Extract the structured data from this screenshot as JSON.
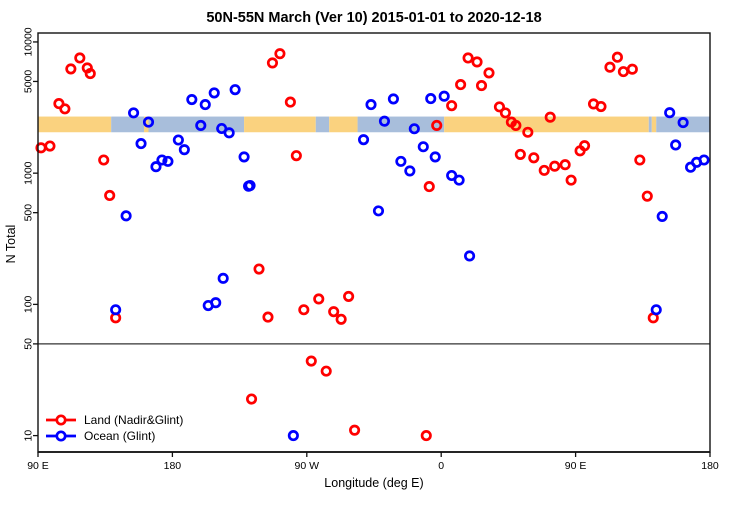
{
  "chart_data": {
    "type": "scatter",
    "title": "50N-55N March (Ver 10)   2015-01-01 to 2020-12-18",
    "xlabel": "Longitude (deg E)",
    "ylabel": "N Total",
    "x_axis": {
      "range": [
        90,
        540
      ],
      "ticks": [
        {
          "value": 90,
          "label": "90 E"
        },
        {
          "value": 180,
          "label": "180"
        },
        {
          "value": 270,
          "label": "90 W"
        },
        {
          "value": 360,
          "label": "0"
        },
        {
          "value": 450,
          "label": "90 E"
        },
        {
          "value": 540,
          "label": "180"
        }
      ]
    },
    "y_axis": {
      "scale": "log",
      "range": [
        7.5,
        11700
      ],
      "ticks": [
        {
          "value": 10000,
          "label": "10000"
        },
        {
          "value": 5000,
          "label": "5000"
        },
        {
          "value": 1000,
          "label": "1000"
        },
        {
          "value": 500,
          "label": "500"
        },
        {
          "value": 100,
          "label": "100"
        },
        {
          "value": 50,
          "label": "50"
        },
        {
          "value": 10,
          "label": "10"
        }
      ]
    },
    "threshold_line": {
      "value": 50,
      "color": "#333333"
    },
    "map_strip": {
      "n_top": 2700,
      "n_bottom": 2050,
      "land_color": "#FAD27F",
      "ocean_color": "#A8BEDB",
      "segments": [
        {
          "from": 90,
          "to": 139,
          "surface": "land"
        },
        {
          "from": 139,
          "to": 161,
          "surface": "ocean"
        },
        {
          "from": 161,
          "to": 164,
          "surface": "land"
        },
        {
          "from": 164,
          "to": 228,
          "surface": "ocean"
        },
        {
          "from": 228,
          "to": 276,
          "surface": "land"
        },
        {
          "from": 276,
          "to": 285,
          "surface": "ocean"
        },
        {
          "from": 285,
          "to": 304,
          "surface": "land"
        },
        {
          "from": 304,
          "to": 362,
          "surface": "ocean"
        },
        {
          "from": 362,
          "to": 499,
          "surface": "land"
        },
        {
          "from": 499,
          "to": 501,
          "surface": "ocean"
        },
        {
          "from": 501,
          "to": 504,
          "surface": "land"
        },
        {
          "from": 504,
          "to": 540,
          "surface": "ocean"
        }
      ]
    },
    "series": [
      {
        "name": "Land (Nadir&Glint)",
        "color": "#FF0000",
        "points": [
          [
            118,
            7550
          ],
          [
            112,
            6230
          ],
          [
            123,
            6340
          ],
          [
            125,
            5740
          ],
          [
            104,
            3390
          ],
          [
            108,
            3090
          ],
          [
            92,
            1560
          ],
          [
            98,
            1610
          ],
          [
            134,
            1260
          ],
          [
            138,
            676
          ],
          [
            142,
            79
          ],
          [
            238,
            186
          ],
          [
            244,
            80
          ],
          [
            233,
            19
          ],
          [
            252,
            8140
          ],
          [
            247,
            6920
          ],
          [
            259,
            3480
          ],
          [
            263,
            1360
          ],
          [
            268,
            91
          ],
          [
            278,
            110
          ],
          [
            273,
            37
          ],
          [
            283,
            31
          ],
          [
            298,
            115
          ],
          [
            288,
            88
          ],
          [
            293,
            77
          ],
          [
            302,
            11
          ],
          [
            350,
            10
          ],
          [
            352,
            790
          ],
          [
            357,
            2310
          ],
          [
            367,
            3270
          ],
          [
            373,
            4730
          ],
          [
            378,
            7550
          ],
          [
            384,
            7040
          ],
          [
            387,
            4650
          ],
          [
            392,
            5810
          ],
          [
            399,
            3200
          ],
          [
            403,
            2880
          ],
          [
            407,
            2450
          ],
          [
            410,
            2310
          ],
          [
            418,
            2050
          ],
          [
            433,
            2670
          ],
          [
            413,
            1390
          ],
          [
            422,
            1310
          ],
          [
            429,
            1050
          ],
          [
            436,
            1130
          ],
          [
            443,
            1160
          ],
          [
            447,
            885
          ],
          [
            456,
            1620
          ],
          [
            453,
            1480
          ],
          [
            462,
            3370
          ],
          [
            467,
            3220
          ],
          [
            473,
            6420
          ],
          [
            478,
            7650
          ],
          [
            482,
            5940
          ],
          [
            488,
            6200
          ],
          [
            493,
            1260
          ],
          [
            498,
            668
          ],
          [
            502,
            79
          ]
        ]
      },
      {
        "name": "Ocean (Glint)",
        "color": "#0000FF",
        "points": [
          [
            154,
            2880
          ],
          [
            164,
            2450
          ],
          [
            193,
            3640
          ],
          [
            202,
            3330
          ],
          [
            208,
            4090
          ],
          [
            222,
            4330
          ],
          [
            199,
            2310
          ],
          [
            213,
            2190
          ],
          [
            218,
            2030
          ],
          [
            159,
            1680
          ],
          [
            184,
            1790
          ],
          [
            188,
            1510
          ],
          [
            169,
            1120
          ],
          [
            173,
            1260
          ],
          [
            177,
            1230
          ],
          [
            228,
            1330
          ],
          [
            231,
            796
          ],
          [
            149,
            473
          ],
          [
            142,
            91
          ],
          [
            261,
            10
          ],
          [
            313,
            3330
          ],
          [
            328,
            3680
          ],
          [
            353,
            3700
          ],
          [
            362,
            3860
          ],
          [
            322,
            2490
          ],
          [
            342,
            2180
          ],
          [
            308,
            1800
          ],
          [
            348,
            1590
          ],
          [
            356,
            1330
          ],
          [
            333,
            1230
          ],
          [
            339,
            1040
          ],
          [
            367,
            960
          ],
          [
            372,
            885
          ],
          [
            232,
            805
          ],
          [
            318,
            516
          ],
          [
            379,
            234
          ],
          [
            508,
            468
          ],
          [
            513,
            2890
          ],
          [
            522,
            2430
          ],
          [
            517,
            1640
          ],
          [
            527,
            1110
          ],
          [
            531,
            1210
          ],
          [
            536,
            1260
          ],
          [
            204,
            98
          ],
          [
            209,
            103
          ],
          [
            214,
            158
          ],
          [
            504,
            91
          ]
        ]
      }
    ],
    "legend": {
      "position": "bottom-left"
    }
  }
}
